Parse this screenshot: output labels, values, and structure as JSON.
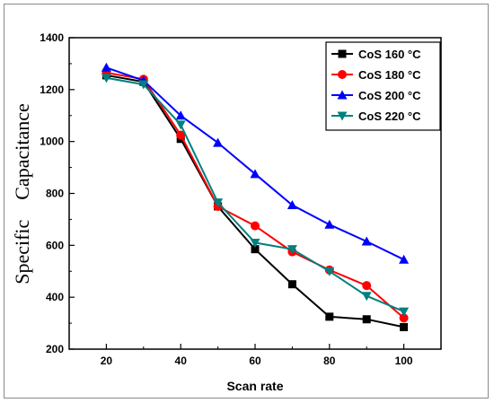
{
  "chart_data": {
    "type": "line",
    "xlabel": "Scan rate",
    "ylabel": "Specific    Capacitance",
    "x": [
      20,
      30,
      40,
      50,
      60,
      70,
      80,
      90,
      100
    ],
    "xlim": [
      10,
      110
    ],
    "ylim": [
      200,
      1400
    ],
    "xticks": [
      20,
      40,
      60,
      80,
      100
    ],
    "yticks": [
      200,
      400,
      600,
      800,
      1000,
      1200,
      1400
    ],
    "legend_position": "top-right",
    "grid": false,
    "series": [
      {
        "name": "CoS 160 °C",
        "color": "#000000",
        "marker": "square",
        "values": [
          1255,
          1230,
          1010,
          750,
          585,
          450,
          325,
          315,
          285
        ]
      },
      {
        "name": "CoS 180 °C",
        "color": "#ff0000",
        "marker": "circle",
        "values": [
          1265,
          1240,
          1025,
          750,
          675,
          575,
          505,
          445,
          320
        ]
      },
      {
        "name": "CoS 200 °C",
        "color": "#0000ff",
        "marker": "triangle-up",
        "values": [
          1285,
          1235,
          1100,
          995,
          875,
          755,
          680,
          615,
          545
        ]
      },
      {
        "name": "CoS 220 °C",
        "color": "#008080",
        "marker": "triangle-down",
        "values": [
          1245,
          1220,
          1065,
          765,
          610,
          585,
          500,
          405,
          345
        ]
      }
    ]
  }
}
